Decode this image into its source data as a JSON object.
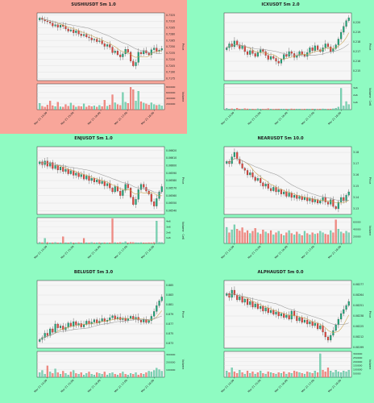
{
  "layout": {
    "columns": 2,
    "rows": 3
  },
  "colors": {
    "background_green": "#8ffbc2",
    "highlight_red": "#f8a69a",
    "panel_bg": "#f6f6f6",
    "candle_up": "#1fa67a",
    "candle_down": "#e0443c",
    "vol_up": "#7fd3b4",
    "vol_down": "#ef8c84",
    "ma_short": "#c9a24a",
    "ma_long": "#9a9a9a"
  },
  "chart_data": [
    {
      "type": "candlestick",
      "title": "SUSHIUSDT 5m 1.0",
      "highlighted": true,
      "ylabel": "Price",
      "ylim": [
        0.717,
        0.733
      ],
      "price_ticks": [
        "0.7325",
        "0.7310",
        "0.7295",
        "0.7280",
        "0.7265",
        "0.7250",
        "0.7235",
        "0.7220",
        "0.7205",
        "0.7190",
        "0.7175"
      ],
      "close": [
        0.7318,
        0.7314,
        0.7311,
        0.7309,
        0.7306,
        0.7299,
        0.7302,
        0.7296,
        0.7301,
        0.7298,
        0.7292,
        0.7287,
        0.729,
        0.7283,
        0.7288,
        0.728,
        0.7276,
        0.7279,
        0.7273,
        0.7271,
        0.7266,
        0.7268,
        0.7262,
        0.7264,
        0.7257,
        0.7251,
        0.7255,
        0.7249,
        0.7236,
        0.724,
        0.7231,
        0.7226,
        0.7233,
        0.7244,
        0.7237,
        0.7216,
        0.7205,
        0.7213,
        0.7237,
        0.7233,
        0.7241,
        0.7235,
        0.7231,
        0.7243,
        0.7247,
        0.7239,
        0.7242,
        0.7246
      ],
      "volume_ticks": [
        "800000",
        "600000",
        "400000",
        "200000"
      ],
      "volume_label": "Volume",
      "volume_max": 900000,
      "volume": [
        220000,
        120000,
        90000,
        160000,
        300000,
        140000,
        110000,
        260000,
        100000,
        90000,
        180000,
        120000,
        230000,
        150000,
        90000,
        120000,
        110000,
        200000,
        90000,
        140000,
        110000,
        130000,
        90000,
        150000,
        110000,
        330000,
        120000,
        160000,
        520000,
        240000,
        180000,
        150000,
        600000,
        260000,
        220000,
        780000,
        700000,
        300000,
        640000,
        280000,
        230000,
        200000,
        160000,
        240000,
        180000,
        150000,
        170000,
        130000
      ],
      "x_ticks": [
        "Mar 21 14:00",
        "Mar 21 15:00",
        "Mar 21 16:00",
        "Mar 21 17:00",
        "Mar 21 18:00"
      ]
    },
    {
      "type": "candlestick",
      "title": "ICXUSDT 5m 2.0",
      "highlighted": false,
      "ylabel": "Price",
      "ylim": [
        0.214,
        0.221
      ],
      "price_ticks": [
        "0.220",
        "0.219",
        "0.218",
        "0.217",
        "0.216",
        "0.215"
      ],
      "close": [
        0.2174,
        0.2178,
        0.2175,
        0.2181,
        0.2177,
        0.2173,
        0.2176,
        0.217,
        0.2167,
        0.2171,
        0.2168,
        0.2165,
        0.2169,
        0.2172,
        0.217,
        0.2166,
        0.2162,
        0.2165,
        0.2163,
        0.216,
        0.2158,
        0.2162,
        0.2167,
        0.2165,
        0.217,
        0.2168,
        0.2164,
        0.2166,
        0.217,
        0.2167,
        0.2165,
        0.2169,
        0.2174,
        0.2171,
        0.2176,
        0.2172,
        0.217,
        0.2174,
        0.2178,
        0.2175,
        0.217,
        0.2173,
        0.2177,
        0.2183,
        0.219,
        0.2196,
        0.2202,
        0.2205
      ],
      "volume_ticks": [
        "3e6",
        "2e6",
        "1e6"
      ],
      "volume_label": "Volume · 1e6",
      "volume_max": 3500000,
      "volume": [
        180000,
        90000,
        120000,
        70000,
        200000,
        90000,
        80000,
        150000,
        110000,
        70000,
        90000,
        60000,
        120000,
        80000,
        90000,
        70000,
        140000,
        80000,
        60000,
        90000,
        100000,
        80000,
        70000,
        90000,
        60000,
        110000,
        80000,
        70000,
        90000,
        60000,
        80000,
        90000,
        70000,
        100000,
        80000,
        60000,
        90000,
        110000,
        80000,
        70000,
        90000,
        120000,
        200000,
        350000,
        2900000,
        500000,
        1100000,
        700000
      ],
      "x_ticks": [
        "Mar 21 14:00",
        "Mar 21 15:00",
        "Mar 21 16:00",
        "Mar 21 17:00",
        "Mar 21 18:00"
      ]
    },
    {
      "type": "candlestick",
      "title": "ENJUSDT 5m 1.0",
      "highlighted": false,
      "ylabel": "Price",
      "ylim": [
        0.06535,
        0.06625
      ],
      "price_ticks": [
        "0.06620",
        "0.06610",
        "0.06600",
        "0.06590",
        "0.06580",
        "0.06570",
        "0.06560",
        "0.06550",
        "0.06540"
      ],
      "close": [
        0.06605,
        0.06601,
        0.06606,
        0.06599,
        0.06604,
        0.06596,
        0.066,
        0.06594,
        0.06598,
        0.06592,
        0.06595,
        0.06589,
        0.06593,
        0.06587,
        0.0659,
        0.06585,
        0.06588,
        0.06582,
        0.06586,
        0.0658,
        0.06583,
        0.06578,
        0.06581,
        0.06576,
        0.06579,
        0.06573,
        0.06576,
        0.0657,
        0.06565,
        0.06572,
        0.06566,
        0.0656,
        0.06567,
        0.06575,
        0.0657,
        0.06558,
        0.06548,
        0.06555,
        0.06568,
        0.06575,
        0.06571,
        0.06566,
        0.06562,
        0.06552,
        0.06546,
        0.06556,
        0.06565,
        0.06572
      ],
      "volume_ticks": [
        "4e6",
        "3e6",
        "2e6",
        "1e6"
      ],
      "volume_label": "Volume · 1e6",
      "volume_max": 4600000,
      "volume": [
        200000,
        150000,
        900000,
        180000,
        120000,
        140000,
        160000,
        120000,
        100000,
        1200000,
        140000,
        120000,
        180000,
        130000,
        110000,
        150000,
        120000,
        900000,
        140000,
        120000,
        160000,
        110000,
        130000,
        150000,
        120000,
        140000,
        110000,
        130000,
        4400000,
        150000,
        120000,
        160000,
        140000,
        300000,
        130000,
        200000,
        160000,
        140000,
        120000,
        150000,
        130000,
        110000,
        140000,
        120000,
        160000,
        4000000,
        200000,
        180000
      ],
      "x_ticks": [
        "Mar 21 14:00",
        "Mar 21 15:00",
        "Mar 21 16:00",
        "Mar 21 17:00",
        "Mar 21 18:00"
      ]
    },
    {
      "type": "candlestick",
      "title": "NEARUSDT 5m 10.0",
      "highlighted": false,
      "ylabel": "Price",
      "ylim": [
        3.125,
        3.185
      ],
      "price_ticks": [
        "3.18",
        "3.17",
        "3.16",
        "3.15",
        "3.14",
        "3.13"
      ],
      "close": [
        3.172,
        3.17,
        3.176,
        3.18,
        3.174,
        3.17,
        3.166,
        3.164,
        3.16,
        3.162,
        3.158,
        3.155,
        3.157,
        3.153,
        3.15,
        3.152,
        3.148,
        3.146,
        3.149,
        3.145,
        3.147,
        3.143,
        3.145,
        3.141,
        3.144,
        3.14,
        3.142,
        3.139,
        3.141,
        3.138,
        3.14,
        3.137,
        3.139,
        3.136,
        3.138,
        3.135,
        3.137,
        3.14,
        3.136,
        3.134,
        3.138,
        3.132,
        3.13,
        3.136,
        3.14,
        3.137,
        3.142,
        3.145
      ],
      "volume_ticks": [
        "60000",
        "40000",
        "20000"
      ],
      "volume_label": "Volume",
      "volume_max": 72000,
      "volume": [
        45000,
        30000,
        38000,
        52000,
        40000,
        35000,
        44000,
        30000,
        36000,
        28000,
        34000,
        42000,
        30000,
        26000,
        38000,
        32000,
        28000,
        36000,
        24000,
        30000,
        34000,
        26000,
        22000,
        30000,
        36000,
        28000,
        24000,
        32000,
        26000,
        22000,
        34000,
        28000,
        24000,
        30000,
        26000,
        28000,
        34000,
        30000,
        26000,
        24000,
        36000,
        30000,
        66000,
        40000,
        32000,
        28000,
        34000,
        30000
      ],
      "x_ticks": [
        "Mar 21 14:00",
        "Mar 21 15:00",
        "Mar 21 16:00",
        "Mar 21 17:00",
        "Mar 21 18:00"
      ]
    },
    {
      "type": "candlestick",
      "title": "BELUSDT 5m 3.0",
      "highlighted": false,
      "ylabel": "Price",
      "ylim": [
        0.872,
        0.886
      ],
      "price_ticks": [
        "0.885",
        "0.883",
        "0.881",
        "0.879",
        "0.877",
        "0.875",
        "0.873"
      ],
      "close": [
        0.8738,
        0.8742,
        0.8751,
        0.8746,
        0.876,
        0.8753,
        0.877,
        0.8762,
        0.8766,
        0.8758,
        0.8763,
        0.8772,
        0.8765,
        0.8775,
        0.8768,
        0.8771,
        0.8764,
        0.8769,
        0.8776,
        0.877,
        0.8774,
        0.8779,
        0.8772,
        0.8776,
        0.8781,
        0.8775,
        0.8778,
        0.8783,
        0.8787,
        0.878,
        0.8784,
        0.8779,
        0.8782,
        0.8777,
        0.8781,
        0.8786,
        0.878,
        0.8784,
        0.8778,
        0.8774,
        0.8779,
        0.8773,
        0.8777,
        0.8786,
        0.8796,
        0.8808,
        0.8818,
        0.8826
      ],
      "volume_ticks": [
        "300000",
        "200000",
        "100000"
      ],
      "volume_label": "Volume",
      "volume_max": 340000,
      "volume": [
        60000,
        90000,
        40000,
        150000,
        70000,
        50000,
        110000,
        60000,
        40000,
        80000,
        50000,
        30000,
        70000,
        90000,
        50000,
        40000,
        60000,
        30000,
        50000,
        70000,
        40000,
        30000,
        60000,
        50000,
        40000,
        70000,
        30000,
        50000,
        60000,
        40000,
        30000,
        50000,
        70000,
        40000,
        30000,
        50000,
        40000,
        60000,
        30000,
        50000,
        40000,
        60000,
        80000,
        70000,
        90000,
        120000,
        100000,
        80000
      ],
      "x_ticks": [
        "Mar 21 14:00",
        "Mar 21 15:00",
        "Mar 21 16:00",
        "Mar 21 17:00",
        "Mar 21 18:00"
      ]
    },
    {
      "type": "candlestick",
      "title": "ALPHAUSDT 5m 0.0",
      "highlighted": false,
      "ylabel": "Price",
      "ylim": [
        0.08198,
        0.08282
      ],
      "price_ticks": [
        "0.08277",
        "0.08264",
        "0.08251",
        "0.08238",
        "0.08225",
        "0.08212",
        "0.08199"
      ],
      "close": [
        0.08266,
        0.08261,
        0.0827,
        0.08264,
        0.08258,
        0.08262,
        0.08255,
        0.08259,
        0.08252,
        0.08256,
        0.08249,
        0.08253,
        0.08247,
        0.0825,
        0.08244,
        0.08248,
        0.08242,
        0.08245,
        0.0824,
        0.08243,
        0.08238,
        0.08241,
        0.08236,
        0.08239,
        0.08234,
        0.08244,
        0.08238,
        0.08232,
        0.08236,
        0.0823,
        0.08233,
        0.08228,
        0.08231,
        0.08226,
        0.08229,
        0.08222,
        0.08226,
        0.08218,
        0.08212,
        0.08208,
        0.08214,
        0.0822,
        0.08227,
        0.08234,
        0.08241,
        0.08246,
        0.08251,
        0.08256
      ],
      "volume_ticks": [
        "300000",
        "250000",
        "200000",
        "150000",
        "100000",
        "50000"
      ],
      "volume_label": "Volume",
      "volume_max": 330000,
      "volume": [
        80000,
        60000,
        120000,
        70000,
        50000,
        90000,
        60000,
        40000,
        80000,
        50000,
        70000,
        40000,
        60000,
        80000,
        50000,
        40000,
        70000,
        60000,
        50000,
        40000,
        60000,
        50000,
        70000,
        40000,
        60000,
        50000,
        80000,
        70000,
        60000,
        50000,
        40000,
        70000,
        60000,
        50000,
        80000,
        60000,
        300000,
        90000,
        70000,
        120000,
        80000,
        60000,
        90000,
        70000,
        60000,
        80000,
        70000,
        90000
      ],
      "x_ticks": [
        "Mar 21 14:00",
        "Mar 21 15:00",
        "Mar 21 16:00",
        "Mar 21 17:00",
        "Mar 21 18:00"
      ]
    }
  ]
}
